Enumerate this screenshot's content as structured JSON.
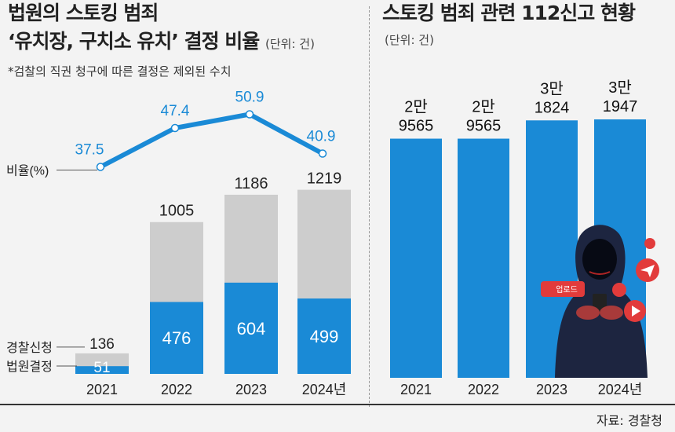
{
  "chart_data": [
    {
      "type": "bar",
      "title_line1": "법원의 스토킹 범죄",
      "title_line2": "‘유치장, 구치소 유치’ 결정 비율",
      "unit": "(단위: 건)",
      "note": "*검찰의 직권 청구에 따른 결정은 제외된 수치",
      "categories": [
        "2021",
        "2022",
        "2023",
        "2024년"
      ],
      "series": [
        {
          "name": "경찰신청",
          "values": [
            136,
            1005,
            1186,
            1219
          ]
        },
        {
          "name": "법원결정",
          "values": [
            51,
            476,
            604,
            499
          ]
        }
      ],
      "line_series": {
        "name": "비율(%)",
        "values": [
          37.5,
          47.4,
          50.9,
          40.9
        ]
      },
      "ylim": [
        0,
        1300
      ],
      "ratio_ylim": [
        30,
        55
      ]
    },
    {
      "type": "bar",
      "title": "스토킹 범죄 관련 112신고 현황",
      "unit": "(단위: 건)",
      "categories": [
        "2021",
        "2022",
        "2023",
        "2024년"
      ],
      "values": [
        29565,
        29565,
        31824,
        31947
      ],
      "value_labels": [
        [
          "2만",
          "9565"
        ],
        [
          "2만",
          "9565"
        ],
        [
          "3만",
          "1824"
        ],
        [
          "3만",
          "1947"
        ]
      ],
      "ylim": [
        0,
        33000
      ]
    }
  ],
  "colors": {
    "blue": "#1a8ad6",
    "gray": "#cdcdcd",
    "line": "#1a8ad6",
    "label_blue": "#1a8ad6"
  },
  "illustration": {
    "upload_label": "업로드"
  },
  "source": "자료: 경찰청"
}
